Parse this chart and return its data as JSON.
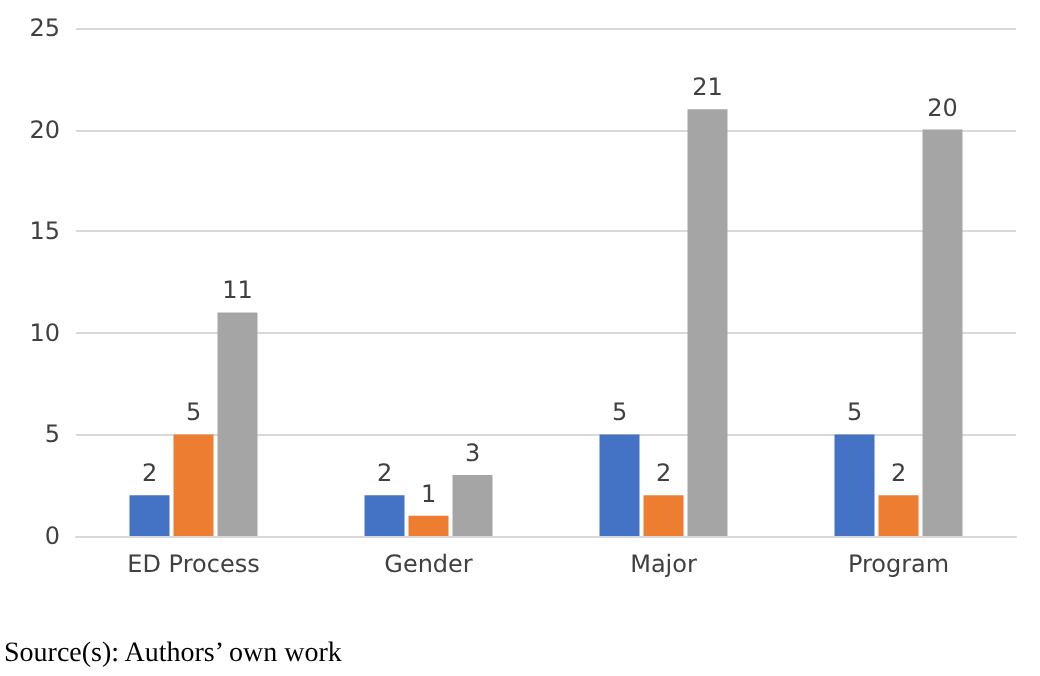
{
  "chart_data": {
    "type": "bar",
    "categories": [
      "ED Process",
      "Gender",
      "Major",
      "Program"
    ],
    "series": [
      {
        "color": "#4472c4",
        "values": [
          2,
          2,
          5,
          5
        ]
      },
      {
        "color": "#ed7d31",
        "values": [
          5,
          1,
          2,
          2
        ]
      },
      {
        "color": "#a5a5a5",
        "values": [
          11,
          3,
          21,
          20
        ]
      }
    ],
    "ylim": [
      0,
      25
    ],
    "yticks": [
      0,
      5,
      10,
      15,
      20,
      25
    ],
    "grid": "y",
    "data_labels": true,
    "annotations": [
      "Source(s): Authors’ own work"
    ]
  }
}
